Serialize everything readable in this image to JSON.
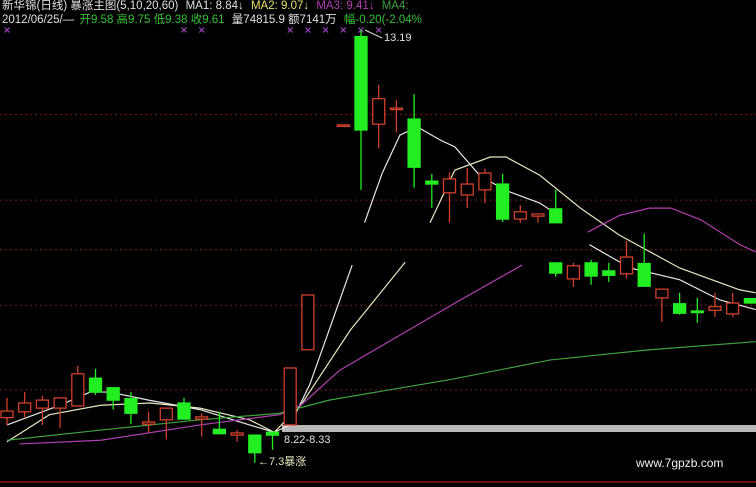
{
  "header": {
    "title": "新华锦(日线) 暴涨主图(5,10,20,60)",
    "ma1": "MA1: 8.84↓",
    "ma2": "MA2: 9.07↓",
    "ma3": "MA3: 9.41↓",
    "ma4": "MA4:",
    "date": "2012/06/25/—",
    "ohlc": "开9.58 高9.75 低9.38 收9.61",
    "volume": "量74815.9 额7141万",
    "change": "幅-0.20(-2.04%"
  },
  "annotations": {
    "high_label": "13.19",
    "range_label": "8.22-8.33",
    "low_label": "←7.3暴涨",
    "watermark": "www.7gpzb.com"
  },
  "colors": {
    "up": "#d0402c",
    "down": "#22ee22",
    "ma1": "#e8e8e8",
    "ma2": "#e8e6c0",
    "ma3": "#b040b0",
    "ma4": "#40a040",
    "grid": "#7a1a1a",
    "marker": "#a040c0",
    "white": "#e0e0e0",
    "green_text": "#38c038",
    "yellow": "#e8e070"
  },
  "chart_data": {
    "type": "candlestick",
    "title": "新华锦(日线) 暴涨主图(5,10,20,60)",
    "grid_levels": [
      12.03,
      10.86,
      10.18,
      9.42,
      8.26
    ],
    "marker_indices": [
      0,
      10,
      11,
      16,
      17,
      18,
      19,
      20,
      21
    ],
    "candles": [
      {
        "i": 0,
        "o": 7.88,
        "h": 8.15,
        "l": 7.78,
        "c": 7.97
      },
      {
        "i": 1,
        "o": 7.96,
        "h": 8.23,
        "l": 7.89,
        "c": 8.08
      },
      {
        "i": 2,
        "o": 8.01,
        "h": 8.18,
        "l": 7.78,
        "c": 8.12
      },
      {
        "i": 3,
        "o": 8.01,
        "h": 8.15,
        "l": 7.74,
        "c": 8.15
      },
      {
        "i": 4,
        "o": 8.04,
        "h": 8.59,
        "l": 8.04,
        "c": 8.48
      },
      {
        "i": 5,
        "o": 8.42,
        "h": 8.55,
        "l": 8.19,
        "c": 8.23
      },
      {
        "i": 6,
        "o": 8.29,
        "h": 8.29,
        "l": 7.99,
        "c": 8.12
      },
      {
        "i": 7,
        "o": 8.14,
        "h": 8.23,
        "l": 7.79,
        "c": 7.94
      },
      {
        "i": 8,
        "o": 7.79,
        "h": 7.96,
        "l": 7.68,
        "c": 7.82
      },
      {
        "i": 9,
        "o": 7.85,
        "h": 8.01,
        "l": 7.58,
        "c": 8.01
      },
      {
        "i": 10,
        "o": 8.08,
        "h": 8.15,
        "l": 7.86,
        "c": 7.86
      },
      {
        "i": 11,
        "o": 7.86,
        "h": 7.94,
        "l": 7.62,
        "c": 7.89
      },
      {
        "i": 12,
        "o": 7.72,
        "h": 7.96,
        "l": 7.66,
        "c": 7.66
      },
      {
        "i": 13,
        "o": 7.64,
        "h": 7.71,
        "l": 7.55,
        "c": 7.67
      },
      {
        "i": 14,
        "o": 7.64,
        "h": 7.64,
        "l": 7.26,
        "c": 7.4
      },
      {
        "i": 15,
        "o": 7.68,
        "h": 7.68,
        "l": 7.44,
        "c": 7.64
      },
      {
        "i": 16,
        "o": 7.78,
        "h": 8.56,
        "l": 7.78,
        "c": 8.56
      },
      {
        "i": 17,
        "o": 8.81,
        "h": 9.56,
        "l": 8.81,
        "c": 9.56
      },
      {
        "i": 19,
        "o": 11.89,
        "h": 11.89,
        "l": 11.89,
        "c": 11.89
      },
      {
        "i": 20,
        "o": 13.1,
        "h": 13.19,
        "l": 11.0,
        "c": 11.82
      },
      {
        "i": 21,
        "o": 11.9,
        "h": 12.44,
        "l": 11.57,
        "c": 12.25
      },
      {
        "i": 22,
        "o": 12.11,
        "h": 12.23,
        "l": 11.79,
        "c": 12.12
      },
      {
        "i": 23,
        "o": 11.97,
        "h": 12.31,
        "l": 11.03,
        "c": 11.31
      },
      {
        "i": 24,
        "o": 11.12,
        "h": 11.22,
        "l": 10.75,
        "c": 11.08
      },
      {
        "i": 25,
        "o": 10.96,
        "h": 11.24,
        "l": 10.55,
        "c": 11.15
      },
      {
        "i": 26,
        "o": 10.93,
        "h": 11.3,
        "l": 10.75,
        "c": 11.08
      },
      {
        "i": 27,
        "o": 11.0,
        "h": 11.29,
        "l": 10.82,
        "c": 11.23
      },
      {
        "i": 28,
        "o": 11.08,
        "h": 11.22,
        "l": 10.56,
        "c": 10.6
      },
      {
        "i": 29,
        "o": 10.6,
        "h": 10.79,
        "l": 10.55,
        "c": 10.7
      },
      {
        "i": 30,
        "o": 10.64,
        "h": 10.67,
        "l": 10.55,
        "c": 10.67
      },
      {
        "i": 31,
        "o": 10.74,
        "h": 11.0,
        "l": 10.55,
        "c": 10.55
      },
      {
        "i": 31,
        "o": 10.0,
        "h": 10.0,
        "l": 9.81,
        "c": 9.86
      },
      {
        "i": 32,
        "o": 9.78,
        "h": 10.0,
        "l": 9.67,
        "c": 9.96
      },
      {
        "i": 33,
        "o": 10.0,
        "h": 10.04,
        "l": 9.7,
        "c": 9.82
      },
      {
        "i": 34,
        "o": 9.89,
        "h": 10.0,
        "l": 9.74,
        "c": 9.83
      },
      {
        "i": 35,
        "o": 9.85,
        "h": 10.3,
        "l": 9.79,
        "c": 10.08
      },
      {
        "i": 36,
        "o": 9.99,
        "h": 10.4,
        "l": 9.67,
        "c": 9.68
      },
      {
        "i": 37,
        "o": 9.52,
        "h": 9.64,
        "l": 9.19,
        "c": 9.64
      },
      {
        "i": 38,
        "o": 9.44,
        "h": 9.59,
        "l": 9.29,
        "c": 9.31
      },
      {
        "i": 39,
        "o": 9.34,
        "h": 9.52,
        "l": 9.18,
        "c": 9.33
      },
      {
        "i": 40,
        "o": 9.35,
        "h": 9.59,
        "l": 9.26,
        "c": 9.4
      },
      {
        "i": 41,
        "o": 9.3,
        "h": 9.59,
        "l": 9.26,
        "c": 9.45
      },
      {
        "i": 42,
        "o": 9.51,
        "h": 9.52,
        "l": 9.44,
        "c": 9.45
      }
    ],
    "ma_lines": [
      {
        "name": "MA1",
        "segments": [
          [
            [
              0,
              7.78
            ],
            [
              3,
              8.05
            ],
            [
              4.7,
              8.23
            ],
            [
              5.8,
              8.23
            ],
            [
              8,
              8.12
            ],
            [
              10.9,
              7.99
            ],
            [
              13.7,
              7.78
            ],
            [
              15.1,
              7.68
            ],
            [
              16,
              7.78
            ],
            [
              17.1,
              8.33
            ],
            [
              18.2,
              9.08
            ],
            [
              19.5,
              9.97
            ]
          ],
          [
            [
              20.2,
              10.55
            ],
            [
              21.2,
              11.23
            ],
            [
              22.2,
              11.75
            ],
            [
              23.2,
              11.86
            ],
            [
              24.5,
              11.68
            ],
            [
              25.3,
              11.59
            ],
            [
              26.7,
              11.2
            ],
            [
              28.1,
              11.0
            ],
            [
              30.1,
              10.82
            ],
            [
              31.1,
              10.66
            ]
          ],
          [
            [
              32.9,
              10.25
            ],
            [
              35.2,
              9.93
            ],
            [
              38.0,
              9.77
            ],
            [
              40.3,
              9.49
            ],
            [
              42.3,
              9.36
            ]
          ]
        ]
      },
      {
        "name": "MA2",
        "segments": [
          [
            [
              0,
              7.55
            ],
            [
              2.4,
              7.92
            ],
            [
              5.3,
              8.05
            ],
            [
              8.1,
              8.08
            ],
            [
              10.9,
              8.01
            ],
            [
              13.7,
              7.85
            ],
            [
              15.1,
              7.68
            ],
            [
              16.6,
              8.05
            ],
            [
              19.4,
              9.08
            ],
            [
              22.5,
              10.01
            ]
          ],
          [
            [
              23.9,
              10.55
            ],
            [
              25.3,
              11.27
            ],
            [
              27.3,
              11.45
            ],
            [
              28.2,
              11.45
            ],
            [
              30.1,
              11.2
            ],
            [
              32.4,
              10.75
            ],
            [
              34.6,
              10.38
            ],
            [
              38.0,
              9.93
            ],
            [
              41.4,
              9.63
            ],
            [
              42.3,
              9.59
            ]
          ]
        ]
      },
      {
        "name": "MA3",
        "segments": [
          [
            [
              0.7,
              7.52
            ],
            [
              5.3,
              7.57
            ],
            [
              10.9,
              7.78
            ],
            [
              15.4,
              7.92
            ],
            [
              16.6,
              8.05
            ],
            [
              18.8,
              8.53
            ],
            [
              22.2,
              9.01
            ],
            [
              25.6,
              9.49
            ],
            [
              29.1,
              9.97
            ]
          ],
          [
            [
              32.8,
              10.42
            ],
            [
              34.6,
              10.65
            ],
            [
              36.3,
              10.75
            ],
            [
              37.5,
              10.75
            ],
            [
              39.2,
              10.59
            ],
            [
              41.4,
              10.25
            ],
            [
              42.3,
              10.15
            ]
          ]
        ]
      },
      {
        "name": "MA4",
        "segments": [
          [
            [
              0,
              7.57
            ],
            [
              5.3,
              7.71
            ],
            [
              10.9,
              7.85
            ],
            [
              15.4,
              7.94
            ],
            [
              18.2,
              8.12
            ],
            [
              25.0,
              8.4
            ],
            [
              30.7,
              8.67
            ],
            [
              36.3,
              8.81
            ],
            [
              42.3,
              8.92
            ]
          ]
        ]
      }
    ]
  }
}
